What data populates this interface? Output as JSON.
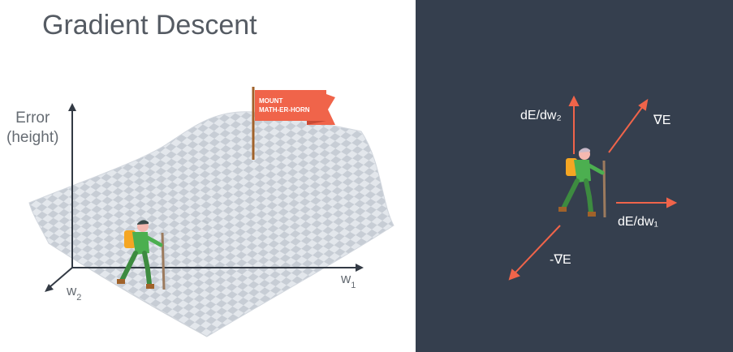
{
  "left_panel": {
    "title": "Gradient Descent",
    "y_axis_label_line1": "Error",
    "y_axis_label_line2": "(height)",
    "x1_axis_label": "w",
    "x1_axis_sub": "1",
    "x2_axis_label": "w",
    "x2_axis_sub": "2",
    "flag_line1": "MOUNT",
    "flag_line2": "MATH-ER-HORN"
  },
  "right_panel": {
    "label_dEdw2": "dE/dw₂",
    "label_gradient": "∇E",
    "label_dEdw1": "dE/dw₁",
    "label_neg_gradient": "-∇E"
  },
  "colors": {
    "right_background": "#353f4e",
    "arrow": "#f0644a",
    "flag": "#f0644a",
    "hiker_body": "#4caf50",
    "backpack": "#f5a623"
  }
}
